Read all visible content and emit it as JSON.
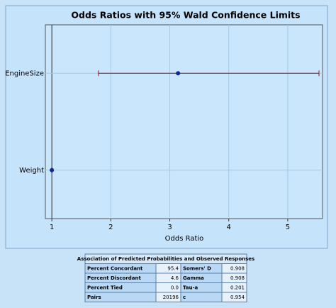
{
  "chart_data": {
    "type": "forest",
    "title": "Odds Ratios with 95% Wald Confidence Limits",
    "x_label": "Odds Ratio",
    "categories": [
      "EngineSize",
      "Weight"
    ],
    "values": [
      3.14,
      1.0
    ],
    "lower": [
      1.79,
      0.999
    ],
    "upper": [
      5.53,
      1.001
    ],
    "point_color": "#0a2a9a",
    "bar_color": "#8b1a1a",
    "xlim": [
      0.89,
      5.59
    ],
    "xticks": [
      1,
      2,
      3,
      4,
      5
    ],
    "reference": 1,
    "grid": true
  },
  "table": {
    "title": "Association of Predicted Probabilities and Observed Responses",
    "rows": [
      [
        "Percent Concordant",
        "95.4",
        "Somers' D",
        "0.908"
      ],
      [
        "Percent Discordant",
        "4.6",
        "Gamma",
        "0.908"
      ],
      [
        "Percent Tied",
        "0.0",
        "Tau-a",
        "0.201"
      ],
      [
        "Pairs",
        "20196",
        "c",
        "0.954"
      ]
    ]
  }
}
